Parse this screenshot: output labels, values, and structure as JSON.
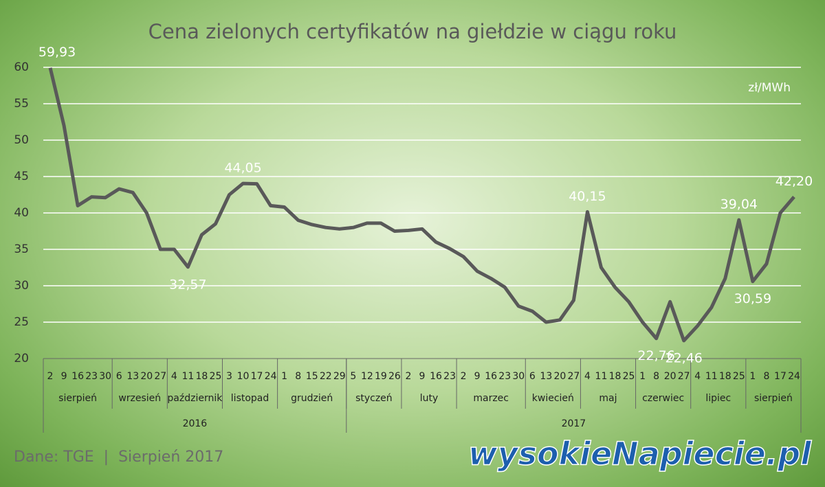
{
  "chart_data": {
    "type": "line",
    "title": "Cena zielonych certyfikatów na giełdzie w ciągu roku",
    "unit": "zł/MWh",
    "source": "Dane: TGE  |  Sierpień 2017",
    "logo": "wysokieNapiecie.pl",
    "years": [
      {
        "label": "2016",
        "months": [
          {
            "label": "sierpień",
            "days": [
              "2",
              "9",
              "16",
              "23",
              "30"
            ]
          },
          {
            "label": "wrzesień",
            "days": [
              "6",
              "13",
              "20",
              "27"
            ]
          },
          {
            "label": "październik",
            "days": [
              "4",
              "11",
              "18",
              "25"
            ]
          },
          {
            "label": "listopad",
            "days": [
              "3",
              "10",
              "17",
              "24"
            ]
          },
          {
            "label": "grudzień",
            "days": [
              "1",
              "8",
              "15",
              "22",
              "29"
            ]
          }
        ]
      },
      {
        "label": "2017",
        "months": [
          {
            "label": "styczeń",
            "days": [
              "5",
              "12",
              "19",
              "26"
            ]
          },
          {
            "label": "luty",
            "days": [
              "2",
              "9",
              "16",
              "23"
            ]
          },
          {
            "label": "marzec",
            "days": [
              "2",
              "9",
              "16",
              "23",
              "30"
            ]
          },
          {
            "label": "kwiecień",
            "days": [
              "6",
              "13",
              "20",
              "27"
            ]
          },
          {
            "label": "maj",
            "days": [
              "4",
              "11",
              "18",
              "25"
            ]
          },
          {
            "label": "czerwiec",
            "days": [
              "1",
              "8",
              "20",
              "27"
            ]
          },
          {
            "label": "lipiec",
            "days": [
              "4",
              "11",
              "18",
              "25"
            ]
          },
          {
            "label": "sierpień",
            "days": [
              "1",
              "8",
              "17",
              "24"
            ]
          }
        ]
      }
    ],
    "series": [
      {
        "name": "Cena",
        "color": "#595959",
        "values": [
          59.93,
          52,
          41,
          42.2,
          42.1,
          43.3,
          42.8,
          40,
          35,
          35,
          32.57,
          37,
          38.5,
          42.5,
          44.05,
          44,
          41,
          40.8,
          39,
          38.4,
          38,
          37.8,
          38,
          38.6,
          38.6,
          37.5,
          37.6,
          37.8,
          36,
          35.1,
          34,
          32,
          31,
          29.8,
          27.2,
          26.5,
          25,
          25.3,
          28,
          40.15,
          32.5,
          29.8,
          27.8,
          25,
          22.76,
          27.8,
          22.46,
          24.5,
          27,
          31,
          39.04,
          30.59,
          33,
          40,
          42.2
        ],
        "value_labels": [
          "59,93",
          null,
          null,
          null,
          null,
          null,
          null,
          null,
          null,
          null,
          "32,57",
          null,
          null,
          null,
          "44,05",
          null,
          null,
          null,
          null,
          null,
          null,
          null,
          null,
          null,
          null,
          null,
          null,
          null,
          null,
          null,
          null,
          null,
          null,
          null,
          null,
          null,
          null,
          null,
          null,
          "40,15",
          null,
          null,
          null,
          null,
          "22,76",
          null,
          "22,46",
          null,
          null,
          null,
          "39,04",
          "30,59",
          null,
          null,
          "42,20"
        ]
      }
    ],
    "ylim": [
      20,
      60
    ],
    "yticks": [
      20,
      25,
      30,
      35,
      40,
      45,
      50,
      55,
      60
    ],
    "grid": true
  }
}
